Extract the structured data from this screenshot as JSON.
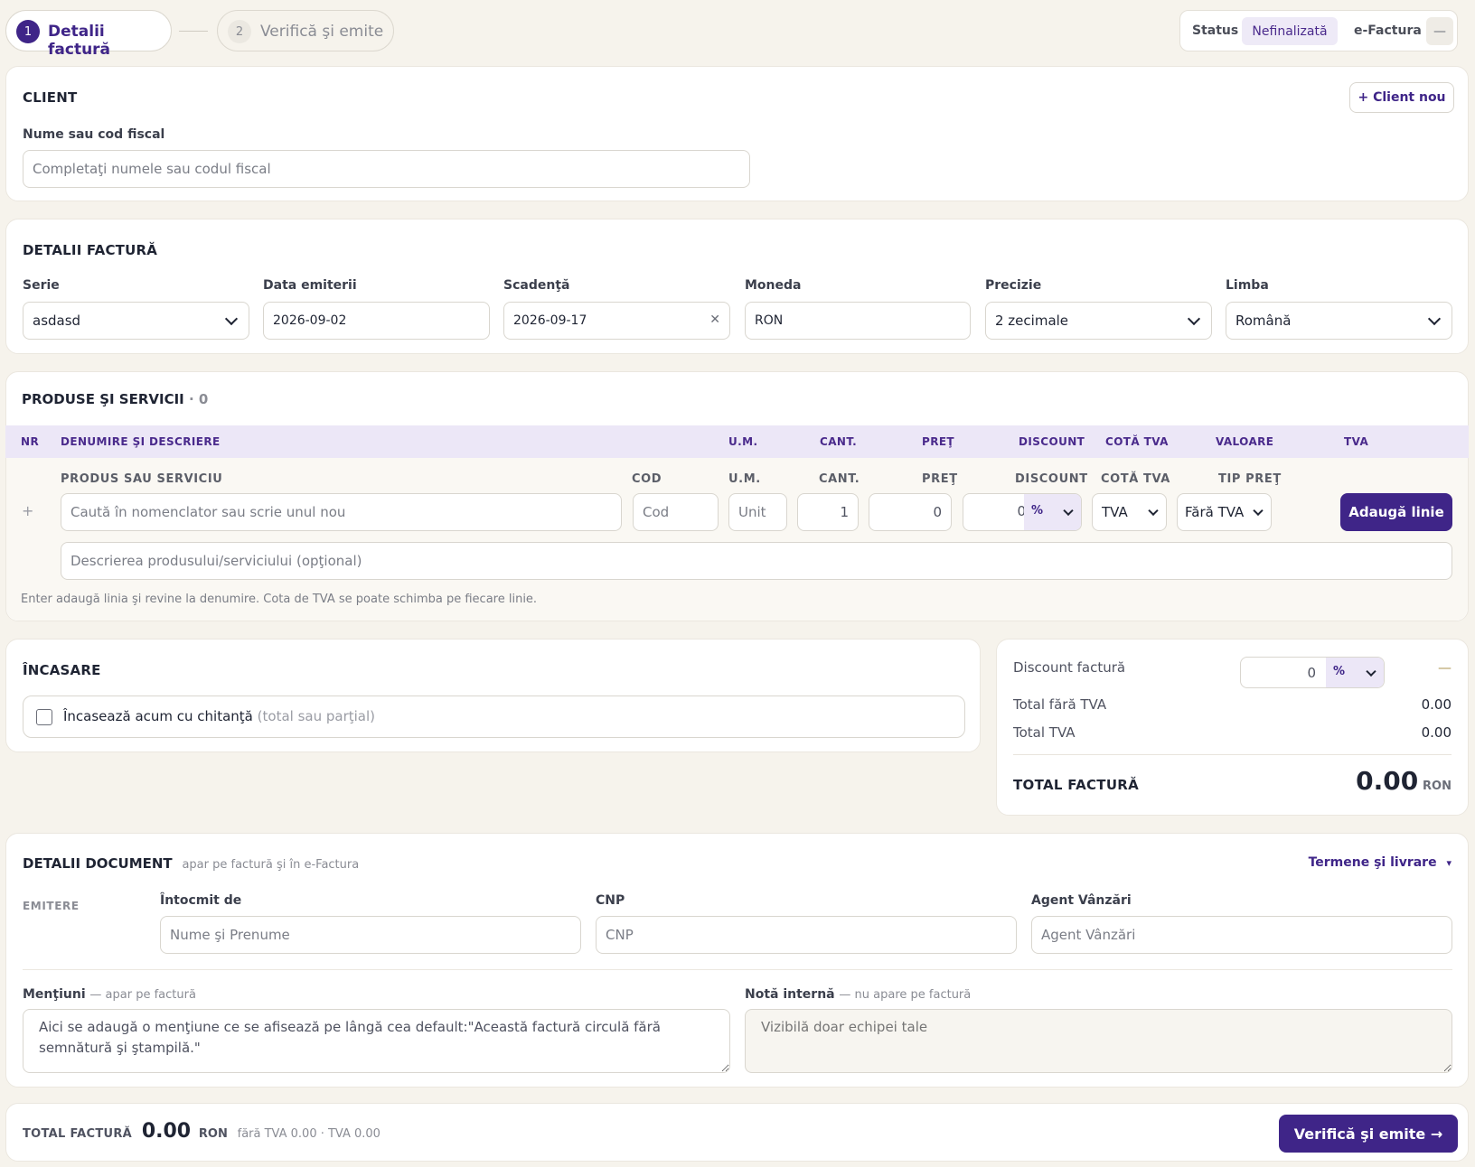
{
  "steps": {
    "step1_num": "1",
    "step1_label": "Detalii factură",
    "step2_num": "2",
    "step2_label": "Verifică şi emite"
  },
  "status_bar": {
    "status_label": "Status",
    "status_value": "Nefinalizată",
    "efactura_label": "e-Factura",
    "efactura_value": "—"
  },
  "client": {
    "title": "CLIENT",
    "new_button": "+ Client nou",
    "field_label": "Nume sau cod fiscal",
    "field_placeholder": "Completaţi numele sau codul fiscal"
  },
  "invoice_details": {
    "title": "DETALII FACTURĂ",
    "serie_label": "Serie",
    "serie_value": "asdasd",
    "issue_date_label": "Data emiterii",
    "issue_date_value": "2026-09-02",
    "due_date_label": "Scadenţă",
    "due_date_value": "2026-09-17",
    "clear_symbol": "✕",
    "currency_label": "Moneda",
    "currency_value": "RON",
    "precision_label": "Precizie",
    "precision_value": "2 zecimale",
    "language_label": "Limba",
    "language_value": "Română"
  },
  "products": {
    "title": "PRODUSE ŞI SERVICII",
    "count": "· 0",
    "headers": {
      "nr": "NR",
      "name": "DENUMIRE ŞI DESCRIERE",
      "um": "U.M.",
      "qty": "CANT.",
      "price": "PREŢ",
      "discount": "DISCOUNT",
      "vat_rate": "COTĂ TVA",
      "value": "VALOARE",
      "vat": "TVA"
    },
    "entry_headers": {
      "product": "PRODUS SAU SERVICIU",
      "code": "COD",
      "um": "U.M.",
      "qty": "CANT.",
      "price": "PREŢ",
      "discount": "DISCOUNT",
      "vat_rate": "COTĂ TVA",
      "price_type": "TIP PREŢ"
    },
    "entry": {
      "plus": "+",
      "product_placeholder": "Caută în nomenclator sau scrie unul nou",
      "code_placeholder": "Cod",
      "um_placeholder": "Unit",
      "qty_value": "1",
      "price_value": "0",
      "discount_value": "0",
      "discount_unit": "%",
      "vat_value": "TVA",
      "price_type_value": "Fără TVA",
      "add_button": "Adaugă linie",
      "description_placeholder": "Descrierea produsului/serviciului (opţional)"
    },
    "hint": "Enter adaugă linia şi revine la denumire. Cota de TVA se poate schimba pe fiecare linie."
  },
  "payment": {
    "title": "ÎNCASARE",
    "checkbox_label": "Încasează acum cu chitanţă",
    "checkbox_hint": "(total sau parţial)"
  },
  "totals": {
    "discount_label": "Discount factură",
    "discount_value": "0",
    "discount_unit": "%",
    "discount_amount": "—",
    "subtotal_label": "Total fără TVA",
    "subtotal_value": "0.00",
    "vat_label": "Total TVA",
    "vat_value": "0.00",
    "total_label": "TOTAL FACTURĂ",
    "total_value": "0.00",
    "currency": "RON"
  },
  "document": {
    "title": "DETALII DOCUMENT",
    "subtitle": "apar pe factură şi în e-Factura",
    "terms_link": "Termene şi livrare",
    "terms_caret": "▾",
    "emitere_label": "EMITERE",
    "prepared_by_label": "Întocmit de",
    "prepared_by_placeholder": "Nume şi Prenume",
    "cnp_label": "CNP",
    "cnp_placeholder": "CNP",
    "agent_label": "Agent Vânzări",
    "agent_placeholder": "Agent Vânzări",
    "mentions_label": "Menţiuni",
    "mentions_hint": "— apar pe factură",
    "mentions_value": "Aici se adaugă o menţiune ce se afisează pe lângă cea default:\"Această factură circulă fără semnătură şi ştampilă.\"",
    "note_label": "Notă internă",
    "note_hint": "— nu apare pe factură",
    "note_placeholder": "Vizibilă doar echipei tale"
  },
  "footer": {
    "total_label": "TOTAL FACTURĂ",
    "total_value": "0.00",
    "currency": "RON",
    "breakdown": "fără TVA 0.00 · TVA 0.00",
    "submit_button": "Verifică şi emite →"
  },
  "colors": {
    "accent": "#3f2588",
    "background": "#f6f3ec",
    "header_row": "#ece7f7"
  }
}
